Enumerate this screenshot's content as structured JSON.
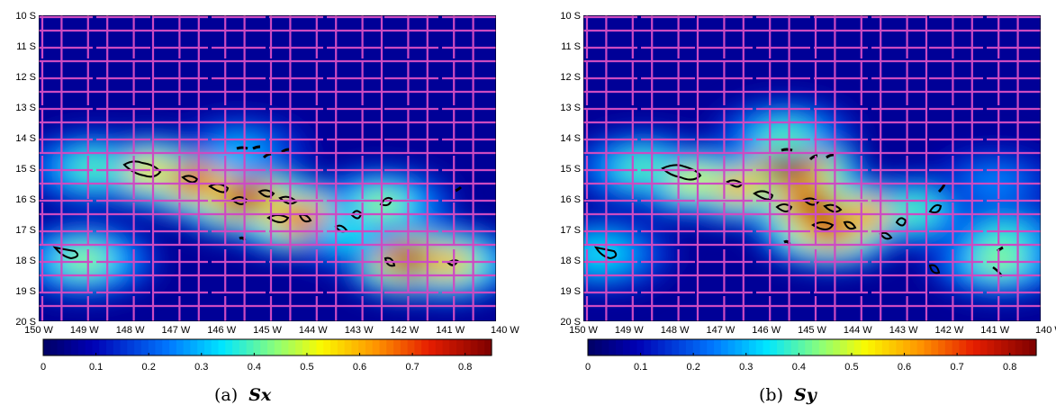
{
  "chart_data": [
    {
      "type": "heatmap",
      "caption": "(a)",
      "caption_symbol": "Sx",
      "x_ticks": [
        "150 W",
        "149 W",
        "148 W",
        "147 W",
        "146 W",
        "145 W",
        "144 W",
        "143 W",
        "142 W",
        "141 W",
        "140 W"
      ],
      "y_ticks": [
        "10 S",
        "11 S",
        "12 S",
        "13 S",
        "14 S",
        "15 S",
        "16 S",
        "17 S",
        "18 S",
        "19 S",
        "20 S"
      ],
      "xlim": [
        -150,
        -140
      ],
      "ylim": [
        -20,
        -10
      ],
      "colorbar": {
        "min": 0,
        "max": 0.85,
        "ticks": [
          "0",
          "0.1",
          "0.2",
          "0.3",
          "0.4",
          "0.5",
          "0.6",
          "0.7",
          "0.8"
        ]
      },
      "grid": true,
      "grid_color": "#cc4bc2",
      "hotspots": [
        {
          "lon": -145.5,
          "lat": -16.0,
          "value": 0.8
        },
        {
          "lon": -146.6,
          "lat": -15.4,
          "value": 0.74
        },
        {
          "lon": -144.3,
          "lat": -16.6,
          "value": 0.7
        },
        {
          "lon": -147.6,
          "lat": -15.1,
          "value": 0.55
        },
        {
          "lon": -148.8,
          "lat": -15.0,
          "value": 0.4
        },
        {
          "lon": -141.8,
          "lat": -18.0,
          "value": 0.82
        },
        {
          "lon": -141.1,
          "lat": -18.1,
          "value": 0.6
        },
        {
          "lon": -142.5,
          "lat": -16.2,
          "value": 0.45
        },
        {
          "lon": -149.0,
          "lat": -18.0,
          "value": 0.45
        },
        {
          "lon": -145.6,
          "lat": -14.5,
          "value": 0.3
        },
        {
          "lon": -143.2,
          "lat": -17.1,
          "value": 0.35
        }
      ]
    },
    {
      "type": "heatmap",
      "caption": "(b)",
      "caption_symbol": "Sy",
      "x_ticks": [
        "150 W",
        "149 W",
        "148 W",
        "147 W",
        "146 W",
        "145 W",
        "144 W",
        "143 W",
        "142 W",
        "141 W",
        "140 W"
      ],
      "y_ticks": [
        "10 S",
        "11 S",
        "12 S",
        "13 S",
        "14 S",
        "15 S",
        "16 S",
        "17 S",
        "18 S",
        "19 S",
        "20 S"
      ],
      "xlim": [
        -150,
        -140
      ],
      "ylim": [
        -20,
        -10
      ],
      "colorbar": {
        "min": 0,
        "max": 0.85,
        "ticks": [
          "0",
          "0.1",
          "0.2",
          "0.3",
          "0.4",
          "0.5",
          "0.6",
          "0.7",
          "0.8"
        ]
      },
      "grid": true,
      "grid_color": "#cc4bc2",
      "hotspots": [
        {
          "lon": -145.5,
          "lat": -15.0,
          "value": 0.85
        },
        {
          "lon": -145.0,
          "lat": -16.2,
          "value": 0.8
        },
        {
          "lon": -144.6,
          "lat": -17.0,
          "value": 0.75
        },
        {
          "lon": -143.8,
          "lat": -16.5,
          "value": 0.62
        },
        {
          "lon": -146.6,
          "lat": -15.6,
          "value": 0.6
        },
        {
          "lon": -147.6,
          "lat": -15.4,
          "value": 0.5
        },
        {
          "lon": -148.7,
          "lat": -15.0,
          "value": 0.4
        },
        {
          "lon": -142.8,
          "lat": -16.4,
          "value": 0.4
        },
        {
          "lon": -140.9,
          "lat": -18.0,
          "value": 0.45
        },
        {
          "lon": -140.8,
          "lat": -17.3,
          "value": 0.38
        },
        {
          "lon": -141.0,
          "lat": -15.5,
          "value": 0.25
        },
        {
          "lon": -149.6,
          "lat": -17.8,
          "value": 0.35
        },
        {
          "lon": -145.6,
          "lat": -14.0,
          "value": 0.4
        }
      ]
    }
  ]
}
